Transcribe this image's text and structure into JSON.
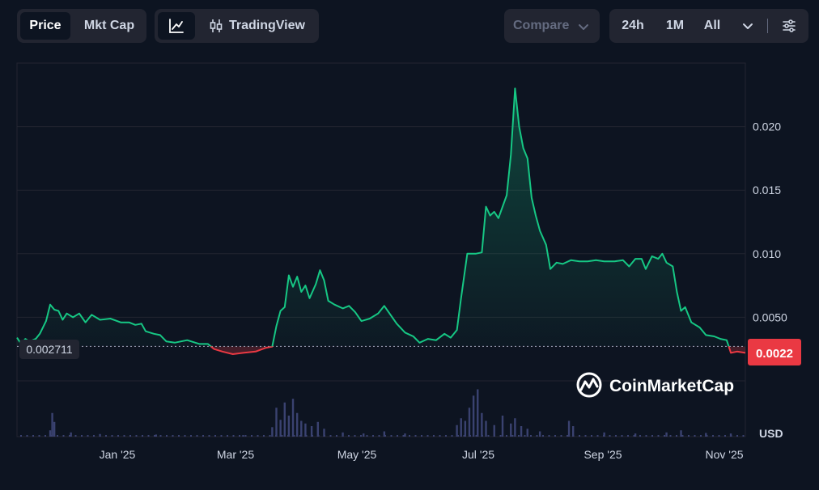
{
  "toolbar": {
    "tabs": [
      {
        "label": "Price",
        "active": true
      },
      {
        "label": "Mkt Cap",
        "active": false
      }
    ],
    "line_icon": "line-chart-icon",
    "tradingview_icon": "candlestick-icon",
    "tradingview_label": "TradingView",
    "compare_label": "Compare",
    "ranges": [
      "24h",
      "1M",
      "All"
    ],
    "dropdown_icon": "chevron-down-icon",
    "settings_icon": "sliders-icon"
  },
  "colors": {
    "background": "#0d1421",
    "up": "#16c784",
    "down": "#ea3943",
    "grid": "#222531",
    "volume": "#3a4270"
  },
  "watermark": "CoinMarketCap",
  "chart_data": {
    "type": "line",
    "title": "",
    "xlabel": "",
    "ylabel": "USD",
    "unit_label": "USD",
    "x_ticks": [
      "Jan '25",
      "Mar '25",
      "May '25",
      "Jul '25",
      "Sep '25",
      "Nov '25"
    ],
    "y_ticks": [
      "0.0050",
      "0.010",
      "0.015",
      "0.020"
    ],
    "ylim": [
      0,
      0.025
    ],
    "xlim": [
      "2024-11-26",
      "2025-11-12"
    ],
    "baseline": 0.002711,
    "baseline_label": "0.002711",
    "current_price": 0.0022,
    "current_price_label": "0.0022",
    "grid": true,
    "series": [
      {
        "points": [
          [
            "2024-11-26",
            0.0034
          ],
          [
            "2024-11-28",
            0.0029
          ],
          [
            "2024-11-30",
            0.0033
          ],
          [
            "2024-12-02",
            0.0031
          ],
          [
            "2024-12-05",
            0.0033
          ],
          [
            "2024-12-07",
            0.0037
          ],
          [
            "2024-12-10",
            0.0047
          ],
          [
            "2024-12-12",
            0.006
          ],
          [
            "2024-12-14",
            0.0056
          ],
          [
            "2024-12-16",
            0.0055
          ],
          [
            "2024-12-18",
            0.0048
          ],
          [
            "2024-12-20",
            0.0053
          ],
          [
            "2024-12-23",
            0.005
          ],
          [
            "2024-12-26",
            0.0053
          ],
          [
            "2024-12-29",
            0.0046
          ],
          [
            "2025-01-01",
            0.0052
          ],
          [
            "2025-01-05",
            0.0048
          ],
          [
            "2025-01-10",
            0.0049
          ],
          [
            "2025-01-15",
            0.0046
          ],
          [
            "2025-01-19",
            0.0046
          ],
          [
            "2025-01-22",
            0.0044
          ],
          [
            "2025-01-25",
            0.0045
          ],
          [
            "2025-01-27",
            0.0039
          ],
          [
            "2025-01-31",
            0.0037
          ],
          [
            "2025-02-03",
            0.0036
          ],
          [
            "2025-02-06",
            0.0031
          ],
          [
            "2025-02-10",
            0.003
          ],
          [
            "2025-02-16",
            0.0032
          ],
          [
            "2025-02-22",
            0.0029
          ],
          [
            "2025-02-26",
            0.0029
          ],
          [
            "2025-03-01",
            0.0025
          ],
          [
            "2025-03-05",
            0.0023
          ],
          [
            "2025-03-10",
            0.0021
          ],
          [
            "2025-03-15",
            0.0022
          ],
          [
            "2025-03-21",
            0.0023
          ],
          [
            "2025-03-26",
            0.0026
          ],
          [
            "2025-03-29",
            0.0027
          ],
          [
            "2025-03-31",
            0.0043
          ],
          [
            "2025-04-02",
            0.0055
          ],
          [
            "2025-04-04",
            0.0058
          ],
          [
            "2025-04-06",
            0.0083
          ],
          [
            "2025-04-08",
            0.0074
          ],
          [
            "2025-04-10",
            0.0082
          ],
          [
            "2025-04-12",
            0.007
          ],
          [
            "2025-04-14",
            0.0075
          ],
          [
            "2025-04-16",
            0.0065
          ],
          [
            "2025-04-19",
            0.0076
          ],
          [
            "2025-04-21",
            0.0087
          ],
          [
            "2025-04-23",
            0.0079
          ],
          [
            "2025-04-25",
            0.0063
          ],
          [
            "2025-04-28",
            0.006
          ],
          [
            "2025-05-02",
            0.0057
          ],
          [
            "2025-05-05",
            0.0059
          ],
          [
            "2025-05-08",
            0.0054
          ],
          [
            "2025-05-11",
            0.0047
          ],
          [
            "2025-05-15",
            0.0049
          ],
          [
            "2025-05-19",
            0.0053
          ],
          [
            "2025-05-22",
            0.0059
          ],
          [
            "2025-05-25",
            0.0052
          ],
          [
            "2025-05-28",
            0.0045
          ],
          [
            "2025-06-01",
            0.0038
          ],
          [
            "2025-06-05",
            0.0035
          ],
          [
            "2025-06-08",
            0.003
          ],
          [
            "2025-06-12",
            0.0033
          ],
          [
            "2025-06-16",
            0.0032
          ],
          [
            "2025-06-20",
            0.0037
          ],
          [
            "2025-06-23",
            0.0034
          ],
          [
            "2025-06-26",
            0.004
          ],
          [
            "2025-06-28",
            0.0065
          ],
          [
            "2025-07-01",
            0.01
          ],
          [
            "2025-07-05",
            0.01
          ],
          [
            "2025-07-08",
            0.0101
          ],
          [
            "2025-07-10",
            0.0137
          ],
          [
            "2025-07-12",
            0.013
          ],
          [
            "2025-07-14",
            0.0133
          ],
          [
            "2025-07-16",
            0.0128
          ],
          [
            "2025-07-18",
            0.0137
          ],
          [
            "2025-07-20",
            0.0146
          ],
          [
            "2025-07-22",
            0.0178
          ],
          [
            "2025-07-24",
            0.023
          ],
          [
            "2025-07-26",
            0.02
          ],
          [
            "2025-07-28",
            0.0183
          ],
          [
            "2025-07-30",
            0.0175
          ],
          [
            "2025-08-01",
            0.0144
          ],
          [
            "2025-08-03",
            0.013
          ],
          [
            "2025-08-05",
            0.0118
          ],
          [
            "2025-08-08",
            0.0107
          ],
          [
            "2025-08-10",
            0.0088
          ],
          [
            "2025-08-13",
            0.0093
          ],
          [
            "2025-08-16",
            0.0092
          ],
          [
            "2025-08-20",
            0.0095
          ],
          [
            "2025-08-24",
            0.0094
          ],
          [
            "2025-08-28",
            0.0094
          ],
          [
            "2025-09-01",
            0.0095
          ],
          [
            "2025-09-05",
            0.0094
          ],
          [
            "2025-09-10",
            0.0094
          ],
          [
            "2025-09-14",
            0.0095
          ],
          [
            "2025-09-17",
            0.009
          ],
          [
            "2025-09-20",
            0.0096
          ],
          [
            "2025-09-23",
            0.0096
          ],
          [
            "2025-09-25",
            0.0088
          ],
          [
            "2025-09-28",
            0.0098
          ],
          [
            "2025-10-01",
            0.0096
          ],
          [
            "2025-10-03",
            0.01
          ],
          [
            "2025-10-05",
            0.0093
          ],
          [
            "2025-10-08",
            0.009
          ],
          [
            "2025-10-10",
            0.007
          ],
          [
            "2025-10-12",
            0.0055
          ],
          [
            "2025-10-14",
            0.0058
          ],
          [
            "2025-10-17",
            0.0046
          ],
          [
            "2025-10-21",
            0.0042
          ],
          [
            "2025-10-24",
            0.0036
          ],
          [
            "2025-10-28",
            0.0035
          ],
          [
            "2025-10-31",
            0.0033
          ],
          [
            "2025-11-03",
            0.0032
          ],
          [
            "2025-11-05",
            0.0022
          ],
          [
            "2025-11-08",
            0.0023
          ],
          [
            "2025-11-12",
            0.0022
          ]
        ]
      }
    ],
    "volume": [
      [
        "2024-12-12",
        0.12
      ],
      [
        "2024-12-13",
        0.45
      ],
      [
        "2024-12-14",
        0.28
      ],
      [
        "2024-12-22",
        0.08
      ],
      [
        "2025-01-05",
        0.05
      ],
      [
        "2025-02-01",
        0.04
      ],
      [
        "2025-03-15",
        0.03
      ],
      [
        "2025-03-29",
        0.18
      ],
      [
        "2025-03-31",
        0.55
      ],
      [
        "2025-04-02",
        0.32
      ],
      [
        "2025-04-04",
        0.65
      ],
      [
        "2025-04-06",
        0.4
      ],
      [
        "2025-04-08",
        0.72
      ],
      [
        "2025-04-10",
        0.45
      ],
      [
        "2025-04-12",
        0.3
      ],
      [
        "2025-04-14",
        0.25
      ],
      [
        "2025-04-17",
        0.2
      ],
      [
        "2025-04-20",
        0.28
      ],
      [
        "2025-04-23",
        0.15
      ],
      [
        "2025-05-02",
        0.08
      ],
      [
        "2025-05-12",
        0.06
      ],
      [
        "2025-05-22",
        0.1
      ],
      [
        "2025-06-01",
        0.06
      ],
      [
        "2025-06-26",
        0.22
      ],
      [
        "2025-06-28",
        0.35
      ],
      [
        "2025-06-30",
        0.3
      ],
      [
        "2025-07-02",
        0.55
      ],
      [
        "2025-07-04",
        0.78
      ],
      [
        "2025-07-06",
        0.9
      ],
      [
        "2025-07-08",
        0.45
      ],
      [
        "2025-07-10",
        0.3
      ],
      [
        "2025-07-14",
        0.22
      ],
      [
        "2025-07-18",
        0.4
      ],
      [
        "2025-07-22",
        0.25
      ],
      [
        "2025-07-24",
        0.35
      ],
      [
        "2025-07-27",
        0.2
      ],
      [
        "2025-07-30",
        0.15
      ],
      [
        "2025-08-05",
        0.1
      ],
      [
        "2025-08-19",
        0.3
      ],
      [
        "2025-08-21",
        0.2
      ],
      [
        "2025-09-05",
        0.08
      ],
      [
        "2025-09-20",
        0.06
      ],
      [
        "2025-10-05",
        0.08
      ],
      [
        "2025-10-12",
        0.12
      ],
      [
        "2025-10-24",
        0.07
      ],
      [
        "2025-11-05",
        0.06
      ]
    ]
  }
}
